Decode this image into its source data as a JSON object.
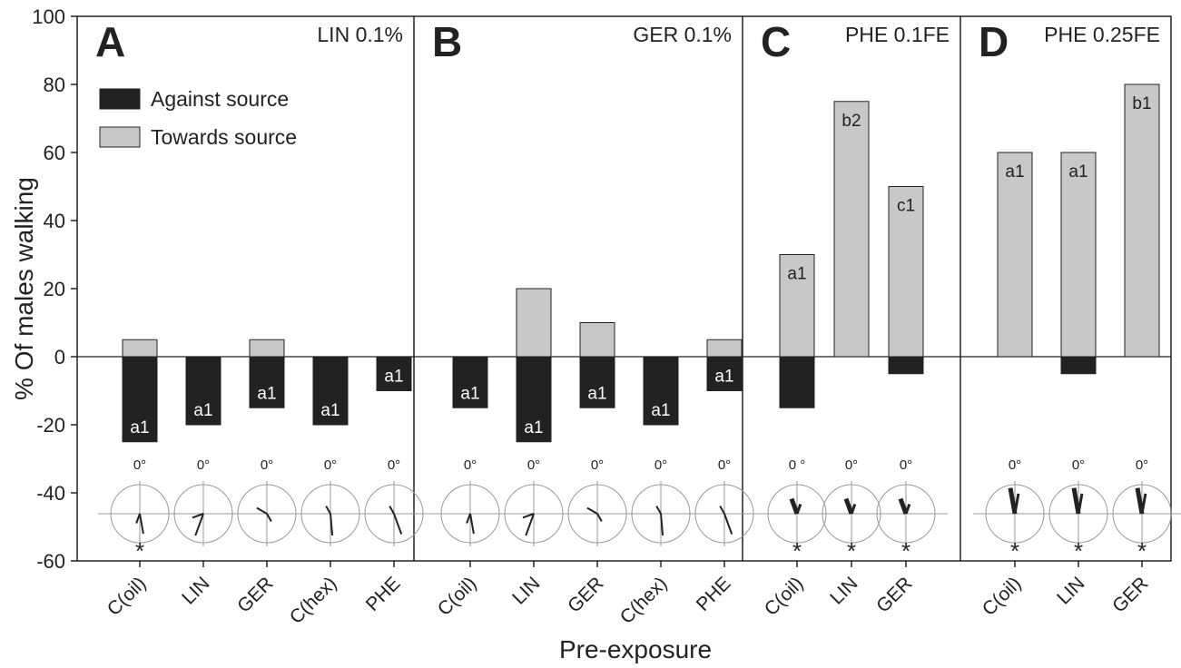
{
  "chart_data": {
    "type": "bar",
    "ylabel": "% Of males walking",
    "xlabel": "Pre-exposure",
    "ylim": [
      -60,
      100
    ],
    "yticks": [
      100,
      80,
      60,
      40,
      20,
      0,
      -20,
      -40,
      -60
    ],
    "legend": {
      "placement": "top-left of panel A",
      "entries": [
        {
          "label": "Against source",
          "color": "#222222"
        },
        {
          "label": "Towards source",
          "color": "#c8c8c8"
        }
      ]
    },
    "colors": {
      "against": "#222222",
      "towards": "#c8c8c8",
      "rose_circle": "#999999"
    },
    "rose_zero_label": "0°",
    "panels": [
      {
        "letter": "A",
        "title": "LIN 0.1%",
        "categories": [
          "C(oil)",
          "LIN",
          "GER",
          "C(hex)",
          "PHE"
        ],
        "towards": [
          5,
          0,
          5,
          0,
          0
        ],
        "against": [
          -25,
          -20,
          -15,
          -20,
          -10
        ],
        "towards_labels": [
          "",
          "",
          "",
          "",
          ""
        ],
        "against_labels": [
          "a1",
          "a1",
          "a1",
          "a1",
          "a1"
        ],
        "zero_labels": [
          "0°",
          "0°",
          "0°",
          "0°",
          "0°"
        ],
        "significance": [
          "*",
          "",
          "",
          "",
          ""
        ]
      },
      {
        "letter": "B",
        "title": "GER 0.1%",
        "categories": [
          "C(oil)",
          "LIN",
          "GER",
          "C(hex)",
          "PHE"
        ],
        "towards": [
          0,
          20,
          10,
          0,
          5
        ],
        "against": [
          -15,
          -25,
          -15,
          -20,
          -10
        ],
        "towards_labels": [
          "",
          "",
          "",
          "",
          ""
        ],
        "against_labels": [
          "a1",
          "a1",
          "a1",
          "a1",
          "a1"
        ],
        "zero_labels": [
          "0°",
          "0°",
          "0°",
          "0°",
          "0°"
        ],
        "significance": [
          "",
          "",
          "",
          "",
          ""
        ]
      },
      {
        "letter": "C",
        "title": "PHE 0.1FE",
        "categories": [
          "C(oil)",
          "LIN",
          "GER"
        ],
        "towards": [
          30,
          75,
          50
        ],
        "against": [
          -15,
          0,
          -5
        ],
        "towards_labels": [
          "a1",
          "b2",
          "c1"
        ],
        "against_labels": [
          "",
          "",
          ""
        ],
        "zero_labels": [
          "0 °",
          "0°",
          "0°"
        ],
        "significance": [
          "*",
          "*",
          "*"
        ]
      },
      {
        "letter": "D",
        "title": "PHE 0.25FE",
        "categories": [
          "C(oil)",
          "LIN",
          "GER"
        ],
        "towards": [
          60,
          60,
          80
        ],
        "against": [
          0,
          -5,
          0
        ],
        "towards_labels": [
          "a1",
          "a1",
          "b1"
        ],
        "against_labels": [
          "",
          "",
          ""
        ],
        "zero_labels": [
          "0°",
          "0°",
          "0°"
        ],
        "significance": [
          "*",
          "*",
          "*"
        ]
      }
    ]
  }
}
